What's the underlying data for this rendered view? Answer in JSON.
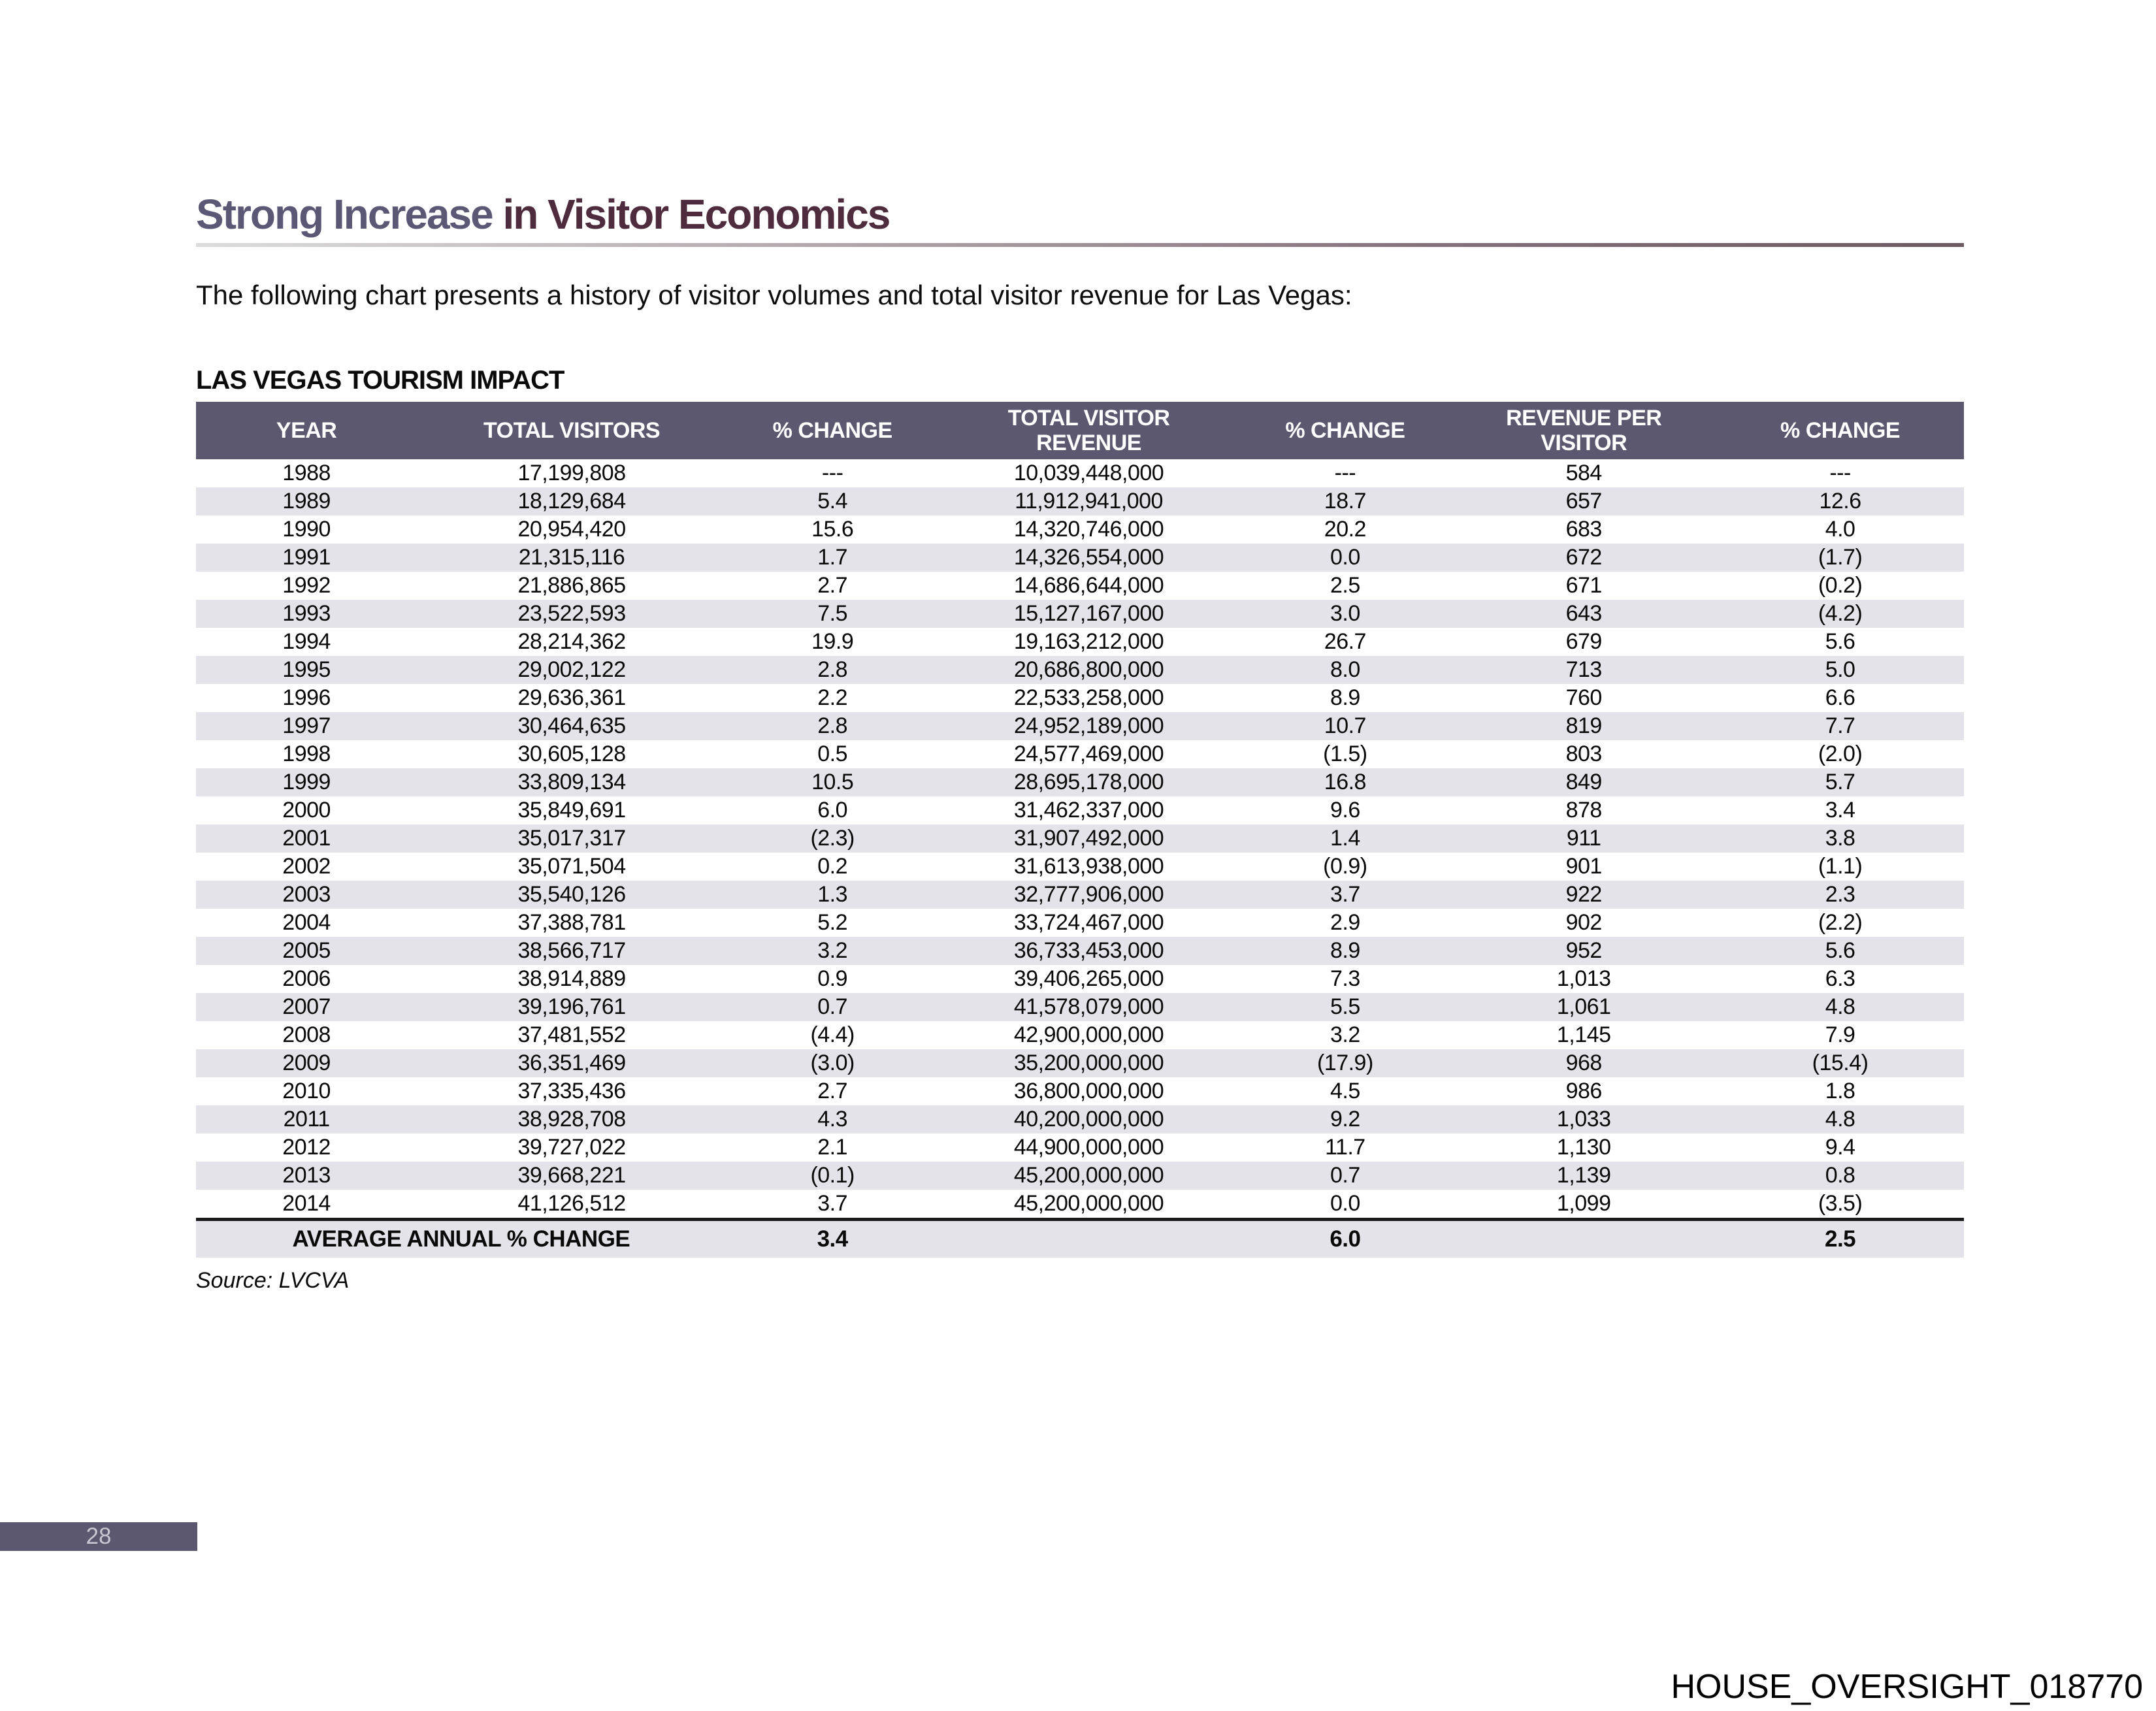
{
  "page": {
    "title": {
      "part1": "Strong Increase",
      "part2": " in Visitor Economics"
    },
    "intro": "The following chart presents a history of visitor volumes and total visitor revenue for Las Vegas:",
    "table_heading": "LAS VEGAS TOURISM IMPACT",
    "source": "Source: LVCVA",
    "page_number": "28",
    "bates_stamp": "HOUSE_OVERSIGHT_018770"
  },
  "colors": {
    "title_accent_1": "#5b5876",
    "title_accent_2": "#4e2c3d",
    "table_header_bg": "#5c5870",
    "table_header_text": "#ffffff",
    "row_stripe": "#e5e3ea",
    "average_row_bg": "#f0d28c",
    "page_badge_bg": "#5c5870",
    "page_badge_text": "#c9c6d3"
  },
  "chart_data": {
    "type": "table",
    "title": "LAS VEGAS TOURISM IMPACT",
    "columns": [
      "YEAR",
      "TOTAL VISITORS",
      "% CHANGE",
      "TOTAL VISITOR\nREVENUE",
      "% CHANGE",
      "REVENUE PER\nVISITOR",
      "% CHANGE"
    ],
    "rows": [
      [
        "1988",
        "17,199,808",
        "---",
        "10,039,448,000",
        "---",
        "584",
        "---"
      ],
      [
        "1989",
        "18,129,684",
        "5.4",
        "11,912,941,000",
        "18.7",
        "657",
        "12.6"
      ],
      [
        "1990",
        "20,954,420",
        "15.6",
        "14,320,746,000",
        "20.2",
        "683",
        "4.0"
      ],
      [
        "1991",
        "21,315,116",
        "1.7",
        "14,326,554,000",
        "0.0",
        "672",
        "(1.7)"
      ],
      [
        "1992",
        "21,886,865",
        "2.7",
        "14,686,644,000",
        "2.5",
        "671",
        "(0.2)"
      ],
      [
        "1993",
        "23,522,593",
        "7.5",
        "15,127,167,000",
        "3.0",
        "643",
        "(4.2)"
      ],
      [
        "1994",
        "28,214,362",
        "19.9",
        "19,163,212,000",
        "26.7",
        "679",
        "5.6"
      ],
      [
        "1995",
        "29,002,122",
        "2.8",
        "20,686,800,000",
        "8.0",
        "713",
        "5.0"
      ],
      [
        "1996",
        "29,636,361",
        "2.2",
        "22,533,258,000",
        "8.9",
        "760",
        "6.6"
      ],
      [
        "1997",
        "30,464,635",
        "2.8",
        "24,952,189,000",
        "10.7",
        "819",
        "7.7"
      ],
      [
        "1998",
        "30,605,128",
        "0.5",
        "24,577,469,000",
        "(1.5)",
        "803",
        "(2.0)"
      ],
      [
        "1999",
        "33,809,134",
        "10.5",
        "28,695,178,000",
        "16.8",
        "849",
        "5.7"
      ],
      [
        "2000",
        "35,849,691",
        "6.0",
        "31,462,337,000",
        "9.6",
        "878",
        "3.4"
      ],
      [
        "2001",
        "35,017,317",
        "(2.3)",
        "31,907,492,000",
        "1.4",
        "911",
        "3.8"
      ],
      [
        "2002",
        "35,071,504",
        "0.2",
        "31,613,938,000",
        "(0.9)",
        "901",
        "(1.1)"
      ],
      [
        "2003",
        "35,540,126",
        "1.3",
        "32,777,906,000",
        "3.7",
        "922",
        "2.3"
      ],
      [
        "2004",
        "37,388,781",
        "5.2",
        "33,724,467,000",
        "2.9",
        "902",
        "(2.2)"
      ],
      [
        "2005",
        "38,566,717",
        "3.2",
        "36,733,453,000",
        "8.9",
        "952",
        "5.6"
      ],
      [
        "2006",
        "38,914,889",
        "0.9",
        "39,406,265,000",
        "7.3",
        "1,013",
        "6.3"
      ],
      [
        "2007",
        "39,196,761",
        "0.7",
        "41,578,079,000",
        "5.5",
        "1,061",
        "4.8"
      ],
      [
        "2008",
        "37,481,552",
        "(4.4)",
        "42,900,000,000",
        "3.2",
        "1,145",
        "7.9"
      ],
      [
        "2009",
        "36,351,469",
        "(3.0)",
        "35,200,000,000",
        "(17.9)",
        "968",
        "(15.4)"
      ],
      [
        "2010",
        "37,335,436",
        "2.7",
        "36,800,000,000",
        "4.5",
        "986",
        "1.8"
      ],
      [
        "2011",
        "38,928,708",
        "4.3",
        "40,200,000,000",
        "9.2",
        "1,033",
        "4.8"
      ],
      [
        "2012",
        "39,727,022",
        "2.1",
        "44,900,000,000",
        "11.7",
        "1,130",
        "9.4"
      ],
      [
        "2013",
        "39,668,221",
        "(0.1)",
        "45,200,000,000",
        "0.7",
        "1,139",
        "0.8"
      ],
      [
        "2014",
        "41,126,512",
        "3.7",
        "45,200,000,000",
        "0.0",
        "1,099",
        "(3.5)"
      ]
    ],
    "average_row": {
      "label": "AVERAGE ANNUAL % CHANGE",
      "values": [
        "3.4",
        "",
        "6.0",
        "",
        "2.5"
      ]
    },
    "column_widths_pct": [
      12.5,
      17.5,
      12,
      17,
      12,
      15,
      14
    ],
    "layout_hints": {
      "stripes": "alternate rows shaded",
      "grid": "none",
      "average_row_top_border": "black"
    }
  }
}
